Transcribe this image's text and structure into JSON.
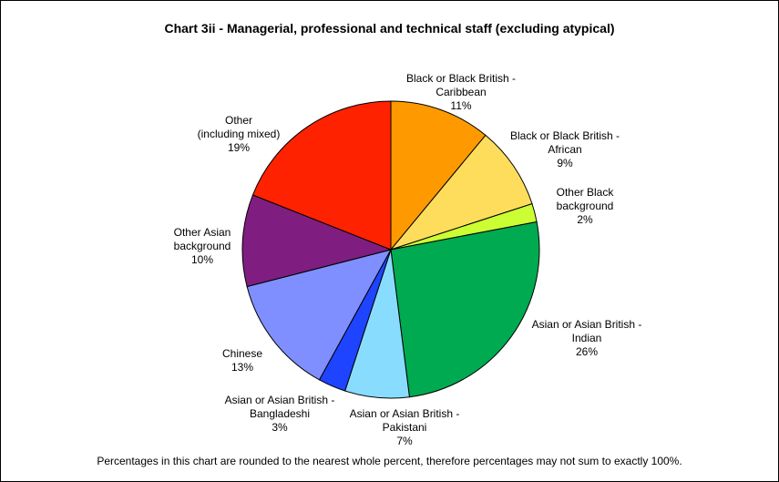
{
  "chart_data": {
    "type": "pie",
    "title": "Chart 3ii - Managerial, professional and technical staff (excluding atypical)",
    "footnote": "Percentages in this chart are rounded to the nearest whole percent, therefore percentages may not sum to exactly 100%.",
    "slices": [
      {
        "label_lines": [
          "Black or Black British -",
          "Caribbean",
          "11%"
        ],
        "value": 11,
        "color": "#FF9900"
      },
      {
        "label_lines": [
          "Black or Black British -",
          "African",
          "9%"
        ],
        "value": 9,
        "color": "#FFDD5C"
      },
      {
        "label_lines": [
          "Other Black",
          "background",
          "2%"
        ],
        "value": 2,
        "color": "#CCFF33"
      },
      {
        "label_lines": [
          "Asian or Asian British -",
          "Indian",
          "26%"
        ],
        "value": 26,
        "color": "#00AA50"
      },
      {
        "label_lines": [
          "Asian or Asian British -",
          "Pakistani",
          "7%"
        ],
        "value": 7,
        "color": "#88DDFF"
      },
      {
        "label_lines": [
          "Asian or Asian British -",
          "Bangladeshi",
          "3%"
        ],
        "value": 3,
        "color": "#1F44FF"
      },
      {
        "label_lines": [
          "Chinese",
          "13%"
        ],
        "value": 13,
        "color": "#7F8FFF"
      },
      {
        "label_lines": [
          "Other Asian",
          "background",
          "10%"
        ],
        "value": 10,
        "color": "#7F1E80"
      },
      {
        "label_lines": [
          "Other",
          "(including mixed)",
          "19%"
        ],
        "value": 19,
        "color": "#FF2200"
      }
    ]
  }
}
